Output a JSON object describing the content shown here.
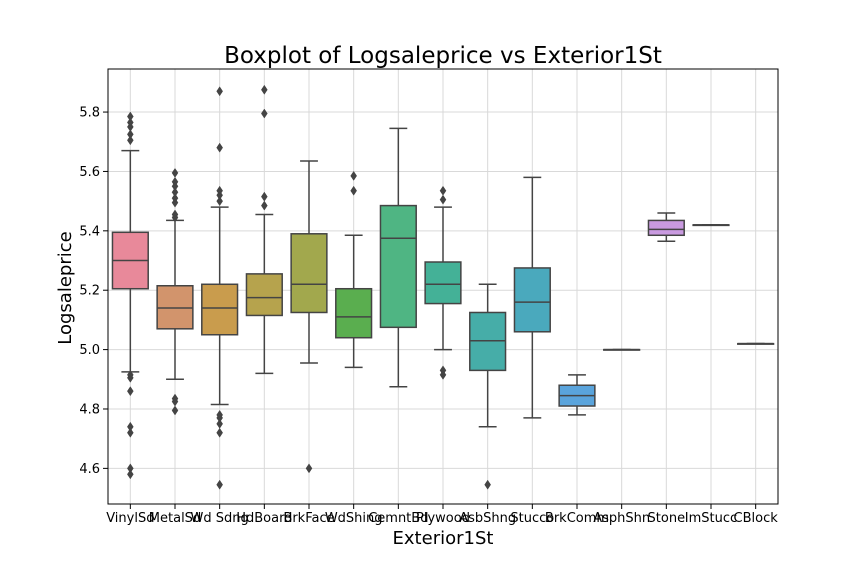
{
  "chart_data": {
    "type": "box",
    "title": "Boxplot of Logsaleprice vs Exterior1St",
    "xlabel": "Exterior1St",
    "ylabel": "Logsaleprice",
    "ylim": [
      4.48,
      5.945
    ],
    "yticks": [
      4.6,
      4.8,
      5.0,
      5.2,
      5.4,
      5.6,
      5.8
    ],
    "ytick_labels": [
      "4.6",
      "4.8",
      "5.0",
      "5.2",
      "5.4",
      "5.6",
      "5.8"
    ],
    "grid": true,
    "categories": [
      "VinylSd",
      "MetalSd",
      "Wd Sdng",
      "HdBoard",
      "BrkFace",
      "WdShing",
      "CemntBd",
      "Plywood",
      "AsbShng",
      "Stucco",
      "BrkComm",
      "AsphShn",
      "Stone",
      "ImStucc",
      "CBlock"
    ],
    "boxes": [
      {
        "category": "VinylSd",
        "color": "#e8899a",
        "whislo": 4.925,
        "q1": 5.205,
        "med": 5.3,
        "q3": 5.395,
        "whishi": 5.67,
        "fliers": [
          4.58,
          4.6,
          4.72,
          4.74,
          4.86,
          4.905,
          4.915,
          5.705,
          5.725,
          5.75,
          5.765,
          5.785
        ]
      },
      {
        "category": "MetalSd",
        "color": "#d2946c",
        "whislo": 4.9,
        "q1": 5.07,
        "med": 5.14,
        "q3": 5.215,
        "whishi": 5.435,
        "fliers": [
          4.795,
          4.825,
          4.835,
          5.445,
          5.455,
          5.495,
          5.51,
          5.53,
          5.55,
          5.565,
          5.595
        ]
      },
      {
        "category": "Wd Sdng",
        "color": "#c99c4d",
        "whislo": 4.815,
        "q1": 5.05,
        "med": 5.14,
        "q3": 5.22,
        "whishi": 5.48,
        "fliers": [
          4.545,
          4.72,
          4.75,
          4.77,
          4.78,
          5.5,
          5.52,
          5.535,
          5.68,
          5.87
        ]
      },
      {
        "category": "HdBoard",
        "color": "#b6a34d",
        "whislo": 4.92,
        "q1": 5.115,
        "med": 5.175,
        "q3": 5.255,
        "whishi": 5.455,
        "fliers": [
          5.485,
          5.515,
          5.795,
          5.875
        ]
      },
      {
        "category": "BrkFace",
        "color": "#a2a84d",
        "whislo": 4.955,
        "q1": 5.125,
        "med": 5.22,
        "q3": 5.39,
        "whishi": 5.635,
        "fliers": [
          4.6
        ]
      },
      {
        "category": "WdShing",
        "color": "#5aae4f",
        "whislo": 4.94,
        "q1": 5.04,
        "med": 5.11,
        "q3": 5.205,
        "whishi": 5.385,
        "fliers": [
          5.535,
          5.585
        ]
      },
      {
        "category": "CemntBd",
        "color": "#4fb583",
        "whislo": 4.875,
        "q1": 5.075,
        "med": 5.375,
        "q3": 5.485,
        "whishi": 5.745,
        "fliers": []
      },
      {
        "category": "Plywood",
        "color": "#44b197",
        "whislo": 5.0,
        "q1": 5.155,
        "med": 5.22,
        "q3": 5.295,
        "whishi": 5.48,
        "fliers": [
          4.915,
          4.93,
          5.505,
          5.535
        ]
      },
      {
        "category": "AsbShng",
        "color": "#46ada8",
        "whislo": 4.74,
        "q1": 4.93,
        "med": 5.03,
        "q3": 5.125,
        "whishi": 5.22,
        "fliers": [
          4.545
        ]
      },
      {
        "category": "Stucco",
        "color": "#4aa9bd",
        "whislo": 4.77,
        "q1": 5.06,
        "med": 5.16,
        "q3": 5.275,
        "whishi": 5.58,
        "fliers": []
      },
      {
        "category": "BrkComm",
        "color": "#5aa4dc",
        "whislo": 4.78,
        "q1": 4.81,
        "med": 4.845,
        "q3": 4.88,
        "whishi": 4.915,
        "fliers": []
      },
      {
        "category": "AsphShn",
        "color": "#8a9ce5",
        "whislo": 5.0,
        "q1": 5.0,
        "med": 5.0,
        "q3": 5.0,
        "whishi": 5.0,
        "fliers": []
      },
      {
        "category": "Stone",
        "color": "#c99ae0",
        "whislo": 5.365,
        "q1": 5.385,
        "med": 5.405,
        "q3": 5.435,
        "whishi": 5.46,
        "fliers": []
      },
      {
        "category": "ImStucc",
        "color": "#e28fd1",
        "whislo": 5.42,
        "q1": 5.42,
        "med": 5.42,
        "q3": 5.42,
        "whishi": 5.42,
        "fliers": []
      },
      {
        "category": "CBlock",
        "color": "#e88eb0",
        "whislo": 5.02,
        "q1": 5.02,
        "med": 5.02,
        "q3": 5.02,
        "whishi": 5.02,
        "fliers": []
      }
    ],
    "line_color": "#444444",
    "grid_color": "#d9d9d9"
  }
}
